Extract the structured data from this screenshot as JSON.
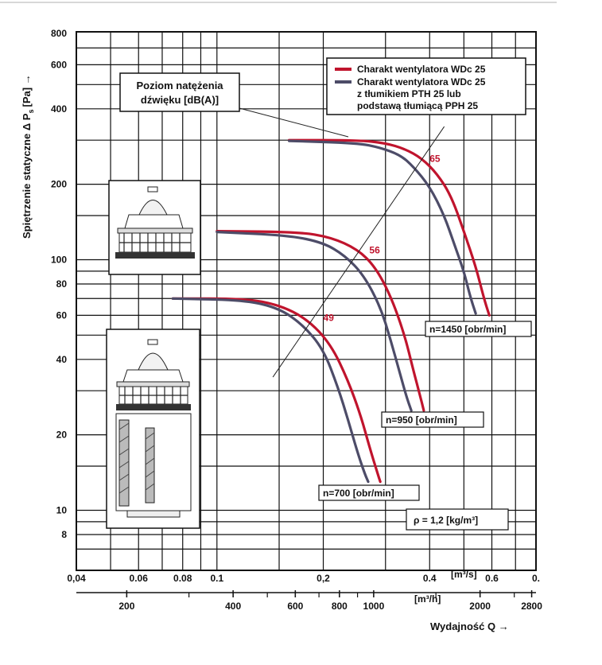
{
  "chart_data": {
    "type": "line",
    "xscale": "log",
    "yscale": "log",
    "xlim": [
      0.04,
      0.8
    ],
    "ylim": [
      6,
      800
    ],
    "grid": true,
    "ylabel": "Spiętrzenie statyczne Δ P",
    "ylabel_sub": "s",
    "ylabel_unit": "[Pa] →",
    "xlabel": "Wydajność Q →",
    "x_unit_top": "[m³/s]",
    "x_unit_bottom": "[m³/h]",
    "y_ticks": [
      800,
      600,
      400,
      200,
      100,
      80,
      60,
      40,
      20,
      10,
      8
    ],
    "x_ticks_top": [
      {
        "v": 0.04,
        "t": "0,04"
      },
      {
        "v": 0.06,
        "t": "0.06"
      },
      {
        "v": 0.08,
        "t": "0.08"
      },
      {
        "v": 0.1,
        "t": "0.1"
      },
      {
        "v": 0.2,
        "t": "0,2"
      },
      {
        "v": 0.4,
        "t": "0.4"
      },
      {
        "v": 0.6,
        "t": "0.6"
      },
      {
        "v": 0.8,
        "t": "0."
      }
    ],
    "x_ticks_bottom": [
      {
        "v": 200,
        "t": "200"
      },
      {
        "v": 400,
        "t": "400"
      },
      {
        "v": 600,
        "t": "600"
      },
      {
        "v": 800,
        "t": "800"
      },
      {
        "v": 1000,
        "t": "1000"
      },
      {
        "v": 2000,
        "t": "2000"
      },
      {
        "v": 2800,
        "t": "2800"
      }
    ],
    "legend": {
      "placement": "top-right",
      "entries": [
        {
          "label_lines": [
            "Charakt wentylatora WDc 25"
          ],
          "color": "#c0142d"
        },
        {
          "label_lines": [
            "Charakt wentylatora WDc 25",
            "z tłumikiem PTH 25 lub",
            "podstawą tłumiącą PPH 25"
          ],
          "color": "#4d4c68"
        }
      ]
    },
    "series": [
      {
        "speed": "n=1450 [obr/min]",
        "variant": "fan",
        "color": "#c0142d",
        "x": [
          0.16,
          0.25,
          0.3,
          0.34,
          0.38,
          0.42,
          0.46,
          0.5,
          0.54,
          0.57,
          0.59
        ],
        "y": [
          300,
          300,
          292,
          277,
          254,
          220,
          180,
          130,
          94,
          70,
          60
        ]
      },
      {
        "speed": "n=1450 [obr/min]",
        "variant": "silencer",
        "color": "#4d4c68",
        "x": [
          0.16,
          0.25,
          0.29,
          0.33,
          0.36,
          0.4,
          0.44,
          0.47,
          0.5,
          0.52,
          0.54
        ],
        "y": [
          298,
          292,
          280,
          262,
          235,
          196,
          150,
          115,
          90,
          72,
          61
        ]
      },
      {
        "speed": "n=950 [obr/min]",
        "variant": "fan",
        "color": "#c0142d",
        "x": [
          0.1,
          0.17,
          0.21,
          0.25,
          0.28,
          0.31,
          0.34,
          0.36,
          0.375,
          0.385
        ],
        "y": [
          130,
          129,
          123,
          110,
          94,
          72,
          50,
          36,
          29,
          25
        ]
      },
      {
        "speed": "n=950 [obr/min]",
        "variant": "silencer",
        "color": "#4d4c68",
        "x": [
          0.1,
          0.16,
          0.2,
          0.23,
          0.26,
          0.29,
          0.31,
          0.33,
          0.345,
          0.355
        ],
        "y": [
          129,
          125,
          117,
          104,
          87,
          65,
          48,
          35,
          28,
          25
        ]
      },
      {
        "speed": "n=700 [obr/min]",
        "variant": "fan",
        "color": "#c0142d",
        "x": [
          0.075,
          0.12,
          0.15,
          0.18,
          0.21,
          0.235,
          0.255,
          0.27,
          0.285,
          0.29
        ],
        "y": [
          70,
          70,
          66,
          58,
          46,
          33,
          24,
          18,
          14,
          13
        ]
      },
      {
        "speed": "n=700 [obr/min]",
        "variant": "silencer",
        "color": "#4d4c68",
        "x": [
          0.075,
          0.12,
          0.15,
          0.175,
          0.2,
          0.22,
          0.235,
          0.25,
          0.262,
          0.268
        ],
        "y": [
          70,
          69,
          64,
          55,
          44,
          31,
          23,
          17,
          14,
          13
        ]
      }
    ],
    "annotations": {
      "sound_label_lines": [
        "Poziom natężenia",
        "dźwięku [dB(A)]"
      ],
      "sound_levels": [
        {
          "text": "65",
          "x": 0.4,
          "y": 246
        },
        {
          "text": "56",
          "x": 0.27,
          "y": 106
        },
        {
          "text": "49",
          "x": 0.2,
          "y": 57
        }
      ],
      "sound_line": {
        "from": [
          0.144,
          34
        ],
        "to": [
          0.44,
          340
        ]
      },
      "speed_labels": [
        "n=1450 [obr/min]",
        "n=950 [obr/min]",
        "n=700 [obr/min]"
      ],
      "density": "ρ = 1,2 [kg/m³]"
    }
  }
}
